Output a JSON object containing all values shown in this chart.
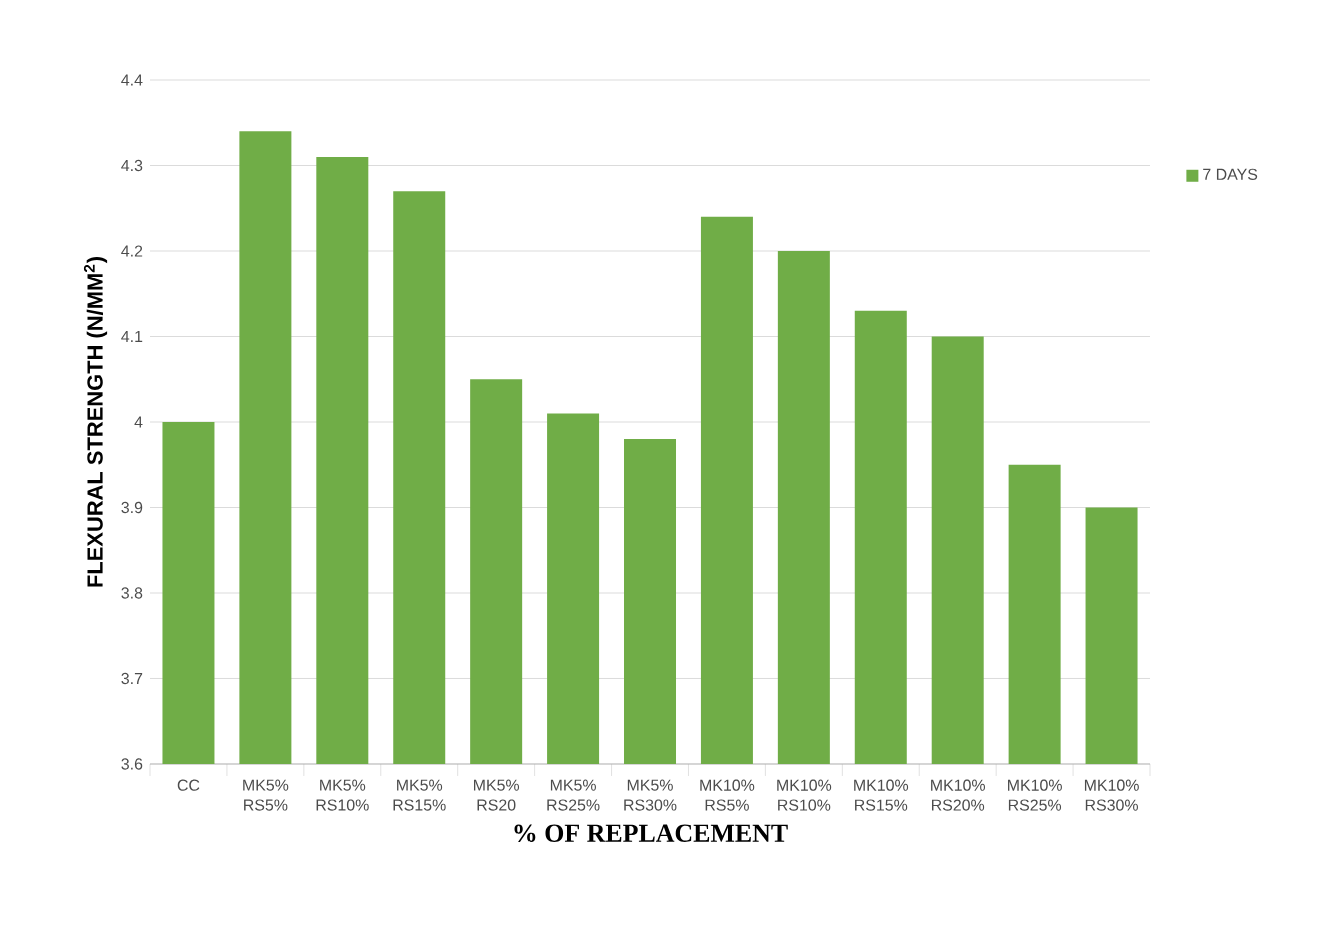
{
  "chart_data": {
    "type": "bar",
    "xlabel": "% OF REPLACEMENT",
    "ylabel": "FLEXURAL STRENGTH (N/MM$^{2}$)",
    "categories": [
      "CC",
      "MK5% RS5%",
      "MK5% RS10%",
      "MK5% RS15%",
      "MK5% RS20",
      "MK5% RS25%",
      "MK5% RS30%",
      "MK10% RS5%",
      "MK10% RS10%",
      "MK10% RS15%",
      "MK10% RS20%",
      "MK10% RS25%",
      "MK10% RS30%"
    ],
    "series": [
      {
        "name": "7 DAYS",
        "color": "#70ad47",
        "values": [
          4.0,
          4.34,
          4.31,
          4.27,
          4.05,
          4.01,
          3.98,
          4.24,
          4.2,
          4.13,
          4.1,
          3.95,
          3.9
        ]
      }
    ],
    "ylim": [
      3.6,
      4.4
    ],
    "yticks": [
      3.6,
      3.7,
      3.8,
      3.9,
      4,
      4.1,
      4.2,
      4.3,
      4.4
    ],
    "grid": "y",
    "legend": "right"
  }
}
